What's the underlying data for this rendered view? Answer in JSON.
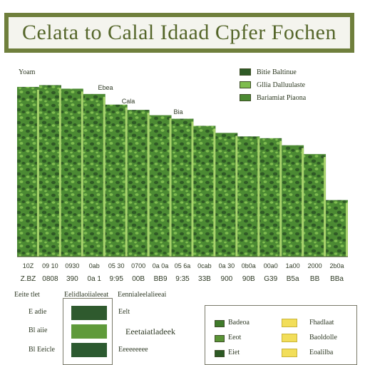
{
  "banner": {
    "title": "Celata to Calal Idaad Cpfer Fochen"
  },
  "chart_data": {
    "type": "bar",
    "ylabel": "Yoam",
    "categories": [
      "10Z",
      "09 10",
      "0930",
      "0ab",
      "05 30",
      "0700",
      "0a 0a",
      "05 6a",
      "0cab",
      "0a 30",
      "0b0a",
      "00a0",
      "1a00",
      "2000",
      "2b0a"
    ],
    "category_labels_bottom": [
      "Z.BZ",
      "0808",
      "390",
      "0a 1",
      "9:95",
      "00B",
      "BB9",
      "9:35",
      "33B",
      "900",
      "90B",
      "G39",
      "B5a",
      "BB",
      "BBa"
    ],
    "values": [
      96,
      97,
      95,
      92,
      86,
      83,
      80,
      78,
      74,
      70,
      68,
      67,
      63,
      58,
      32
    ],
    "ylim": [
      0,
      100
    ],
    "annotations": [
      "Ebea",
      "Cala",
      "Bia"
    ],
    "legend": [
      "Bitie Baltinue",
      "Gllia Dalluulaste",
      "Bariamiat Piaona"
    ],
    "colors": {
      "bar_dark": "#2f5a26",
      "bar_mid": "#4c8a33",
      "bar_light": "#7fbd4f",
      "stripe": "#a8d36c"
    }
  },
  "lower_table": {
    "header_left": "Eeite tlet",
    "header_mid": "Eelidlaoiialeeat",
    "header_right": "Eennialeelalieeai",
    "rows": [
      {
        "label": "E adie",
        "value": "Eelt",
        "color": "#2f5a2e"
      },
      {
        "label": "Bl aiie",
        "value": "Eeetaiatladeek",
        "color": "#5f9a3a"
      },
      {
        "label": "Bl Eeicle",
        "value": "Eeeeeeeee",
        "color": "#2c5a30"
      }
    ]
  },
  "bottom_legend": {
    "rows": [
      {
        "label": "Badeoa",
        "color": "#3f7a2a",
        "right": "Fhadlaat"
      },
      {
        "label": "Eeot",
        "color": "#5a9436",
        "right": "Baoldolle"
      },
      {
        "label": "Eiet",
        "color": "#2d5a25",
        "right": "Eoalilba"
      }
    ]
  }
}
